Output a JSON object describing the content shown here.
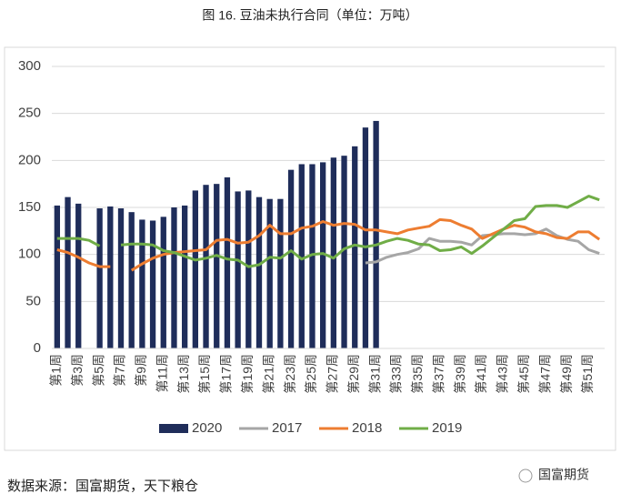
{
  "chart_data": {
    "type": "bar-line",
    "title": "图 16.  豆油未执行合同（单位：万吨）",
    "categories": [
      "第1周",
      null,
      "第3周",
      null,
      "第5周",
      null,
      "第7周",
      null,
      "第9周",
      null,
      "第11周",
      null,
      "第13周",
      null,
      "第15周",
      null,
      "第17周",
      null,
      "第19周",
      null,
      "第21周",
      null,
      "第23周",
      null,
      "第25周",
      null,
      "第27周",
      null,
      "第29周",
      null,
      "第31周",
      null,
      "第33周",
      null,
      "第35周",
      null,
      "第37周",
      null,
      "第39周",
      null,
      "第41周",
      null,
      "第43周",
      null,
      "第45周",
      null,
      "第47周",
      null,
      "第49周",
      null,
      "第51周",
      null
    ],
    "series": [
      {
        "name": "2020",
        "kind": "bar",
        "color": "#1f2d5a",
        "values": [
          152,
          161,
          154,
          null,
          149,
          151,
          149,
          145,
          137,
          136,
          140,
          150,
          152,
          168,
          174,
          175,
          182,
          167,
          168,
          161,
          159,
          159,
          190,
          196,
          196,
          198,
          203,
          205,
          215,
          235,
          242,
          null,
          null,
          null,
          null,
          null,
          null,
          null,
          null,
          null,
          null,
          null,
          null,
          null,
          null,
          null,
          null,
          null,
          null,
          null,
          null,
          null
        ]
      },
      {
        "name": "2017",
        "kind": "line",
        "color": "#a6a6a6",
        "values": [
          null,
          null,
          null,
          null,
          null,
          null,
          null,
          null,
          null,
          null,
          null,
          null,
          null,
          null,
          null,
          null,
          null,
          null,
          null,
          null,
          null,
          null,
          null,
          null,
          null,
          null,
          null,
          null,
          null,
          91,
          92,
          97,
          100,
          102,
          106,
          117,
          114,
          114,
          113,
          110,
          120,
          121,
          122,
          122,
          121,
          122,
          127,
          120,
          116,
          114,
          105,
          101
        ]
      },
      {
        "name": "2018",
        "kind": "line",
        "color": "#ed7d31",
        "values": [
          105,
          102,
          97,
          91,
          87,
          87,
          null,
          83,
          90,
          96,
          100,
          102,
          103,
          104,
          105,
          115,
          116,
          112,
          113,
          120,
          131,
          122,
          122,
          128,
          130,
          135,
          131,
          133,
          132,
          126,
          126,
          124,
          122,
          126,
          128,
          130,
          137,
          136,
          131,
          127,
          117,
          122,
          127,
          131,
          129,
          124,
          122,
          118,
          117,
          124,
          124,
          116
        ]
      },
      {
        "name": "2019",
        "kind": "line",
        "color": "#70ad47",
        "values": [
          117,
          117,
          117,
          115,
          109,
          null,
          110,
          111,
          111,
          110,
          104,
          102,
          98,
          94,
          96,
          99,
          95,
          94,
          87,
          89,
          97,
          96,
          104,
          95,
          100,
          101,
          96,
          106,
          110,
          108,
          110,
          114,
          117,
          115,
          111,
          110,
          104,
          105,
          108,
          101,
          109,
          118,
          127,
          136,
          138,
          151,
          152,
          152,
          150,
          156,
          162,
          158
        ]
      }
    ],
    "ylim": [
      0,
      300
    ],
    "yticks": [
      0,
      50,
      100,
      150,
      200,
      250,
      300
    ],
    "grid": true,
    "legend": "bottom",
    "source": "数据来源：国富期货，天下粮仓",
    "logo": "国富期货"
  }
}
